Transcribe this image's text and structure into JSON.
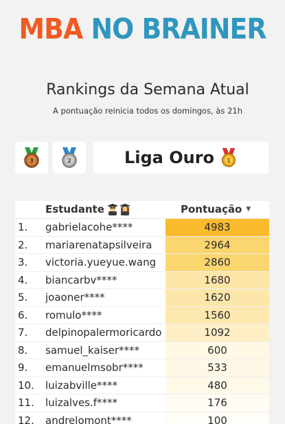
{
  "logo": {
    "part1": "MBA",
    "part2": "NO BRAINER"
  },
  "header": {
    "title": "Rankings da Semana Atual",
    "subtitle": "A pontuação reinicia todos os domingos, às 21h"
  },
  "leagues": {
    "bronze_icon": "bronze-medal-icon",
    "silver_icon": "silver-medal-icon",
    "current_label": "Liga Ouro",
    "current_icon": "gold-medal-icon"
  },
  "table": {
    "headers": {
      "student": "Estudante",
      "score": "Pontuação"
    },
    "student_header_icons": "graduate-icons",
    "sort_icon": "sort-desc-icon",
    "rows": [
      {
        "rank": "1.",
        "student": "gabrielacohe****",
        "score": "4983",
        "color": "#f9bb2d"
      },
      {
        "rank": "2.",
        "student": "mariarenatapsilveira",
        "score": "2964",
        "color": "#fbd56d"
      },
      {
        "rank": "3.",
        "student": "victoria.yueyue.wang",
        "score": "2860",
        "color": "#fbd66f"
      },
      {
        "rank": "4.",
        "student": "biancarbv****",
        "score": "1680",
        "color": "#fde6a8"
      },
      {
        "rank": "5.",
        "student": "joaoner****",
        "score": "1620",
        "color": "#fde6aa"
      },
      {
        "rank": "6.",
        "student": "romulo****",
        "score": "1560",
        "color": "#fde8af"
      },
      {
        "rank": "7.",
        "student": "delpinopalermoricardo",
        "score": "1092",
        "color": "#feefc6"
      },
      {
        "rank": "8.",
        "student": "samuel_kaiser****",
        "score": "600",
        "color": "#fff8e4"
      },
      {
        "rank": "9.",
        "student": "emanuelmsobr****",
        "score": "533",
        "color": "#fff8e6"
      },
      {
        "rank": "10.",
        "student": "luizabville****",
        "score": "480",
        "color": "#fff9e8"
      },
      {
        "rank": "11.",
        "student": "luizalves.f****",
        "score": "176",
        "color": "#fffcf4"
      },
      {
        "rank": "12.",
        "student": "andrelomont****",
        "score": "100",
        "color": "#fffdf7"
      }
    ]
  }
}
